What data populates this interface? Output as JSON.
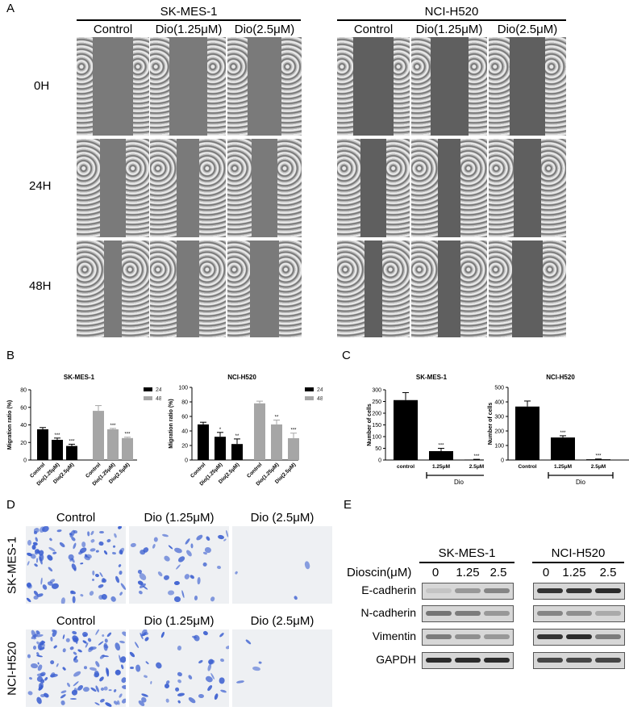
{
  "panelA": {
    "letter": "A",
    "groups": [
      {
        "name": "SK-MES-1",
        "conditions": [
          "Control",
          "Dio(1.25μM)",
          "Dio(2.5μM)"
        ]
      },
      {
        "name": "NCI-H520",
        "conditions": [
          "Control",
          "Dio(1.25μM)",
          "Dio(2.5μM)"
        ]
      }
    ],
    "timepoints": [
      "0H",
      "24H",
      "48H"
    ]
  },
  "panelB": {
    "letter": "B"
  },
  "panelC": {
    "letter": "C"
  },
  "panelD": {
    "letter": "D",
    "columns": [
      "Control",
      "Dio (1.25μM)",
      "Dio (2.5μM)"
    ],
    "rows": [
      "SK-MES-1",
      "NCI-H520"
    ]
  },
  "panelE": {
    "letter": "E",
    "groups": [
      "SK-MES-1",
      "NCI-H520"
    ],
    "dose_label": "Dioscin(μM)",
    "doses": [
      "0",
      "1.25",
      "2.5"
    ],
    "proteins": [
      "E-cadherin",
      "N-cadherin",
      "Vimentin",
      "GAPDH"
    ]
  },
  "colors": {
    "black_bar": "#000000",
    "gray_bar": "#a6a6a6",
    "stain_blue": "#3b5fd0"
  },
  "chart_data": [
    {
      "panel": "B",
      "type": "bar",
      "title": "SK-MES-1",
      "ylabel": "Migration ratio (%)",
      "ylim": [
        0,
        80
      ],
      "yticks": [
        0,
        20,
        40,
        60,
        80
      ],
      "categories": [
        "Control",
        "Dio(1.25μM)",
        "Dio(2.5μM)"
      ],
      "series": [
        {
          "name": "24H",
          "values": [
            35,
            23,
            16
          ],
          "errors": [
            2,
            2,
            2
          ],
          "significance": [
            "",
            "***",
            "***"
          ]
        },
        {
          "name": "48H",
          "values": [
            56,
            35,
            25
          ],
          "errors": [
            6,
            1,
            1
          ],
          "significance": [
            "",
            "***",
            "***"
          ]
        }
      ],
      "legend": [
        "24H",
        "48H"
      ]
    },
    {
      "panel": "B",
      "type": "bar",
      "title": "NCI-H520",
      "ylabel": "Migration ratio (%)",
      "ylim": [
        0,
        100
      ],
      "yticks": [
        0,
        20,
        40,
        60,
        80,
        100
      ],
      "categories": [
        "Control",
        "Dio(1.25μM)",
        "Dio(2.5μM)"
      ],
      "series": [
        {
          "name": "24H",
          "values": [
            49,
            32,
            22
          ],
          "errors": [
            3,
            6,
            7
          ],
          "significance": [
            "",
            "*",
            "**"
          ]
        },
        {
          "name": "48H",
          "values": [
            78,
            49,
            30
          ],
          "errors": [
            3,
            6,
            7
          ],
          "significance": [
            "",
            "**",
            "***"
          ]
        }
      ],
      "legend": [
        "24H",
        "48H"
      ]
    },
    {
      "panel": "C",
      "type": "bar",
      "title": "SK-MES-1",
      "ylabel": "Number of cells",
      "ylim": [
        0,
        300
      ],
      "yticks": [
        0,
        50,
        100,
        150,
        200,
        250,
        300
      ],
      "categories": [
        "control",
        "1.25μM",
        "2.5μM"
      ],
      "group_label": "Dio",
      "values": [
        256,
        38,
        2
      ],
      "errors": [
        32,
        12,
        1
      ],
      "significance": [
        "",
        "***",
        "***"
      ]
    },
    {
      "panel": "C",
      "type": "bar",
      "title": "NCI-H520",
      "ylabel": "Number of cells",
      "ylim": [
        0,
        500
      ],
      "yticks": [
        0,
        100,
        200,
        300,
        400,
        500
      ],
      "categories": [
        "Control",
        "1.25μM",
        "2.5μM"
      ],
      "group_label": "Dio",
      "values": [
        368,
        155,
        5
      ],
      "errors": [
        38,
        12,
        2
      ],
      "significance": [
        "",
        "***",
        "***"
      ]
    }
  ]
}
